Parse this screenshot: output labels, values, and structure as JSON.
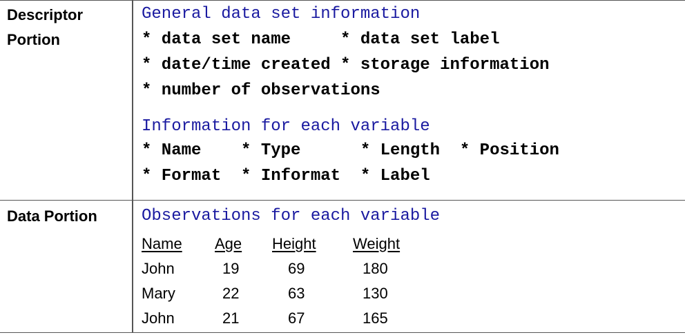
{
  "descriptor": {
    "label_line1": "Descriptor",
    "label_line2": "Portion",
    "general_heading": "General data set information",
    "general_lines": [
      "* data set name     * data set label",
      "* date/time created * storage information",
      "* number of observations"
    ],
    "variable_heading": "Information for each variable",
    "variable_lines": [
      "* Name    * Type      * Length  * Position",
      "* Format  * Informat  * Label"
    ]
  },
  "data_portion": {
    "label": "Data Portion",
    "heading": "Observations for each variable",
    "columns": [
      "Name",
      "Age",
      "Height",
      "Weight"
    ],
    "rows": [
      [
        "John",
        "19",
        "69",
        "180"
      ],
      [
        "Mary",
        "22",
        "63",
        "130"
      ],
      [
        "John",
        "21",
        "67",
        "165"
      ]
    ]
  },
  "colors": {
    "heading": "#1a1aa0",
    "text": "#000000",
    "border": "#555555"
  }
}
